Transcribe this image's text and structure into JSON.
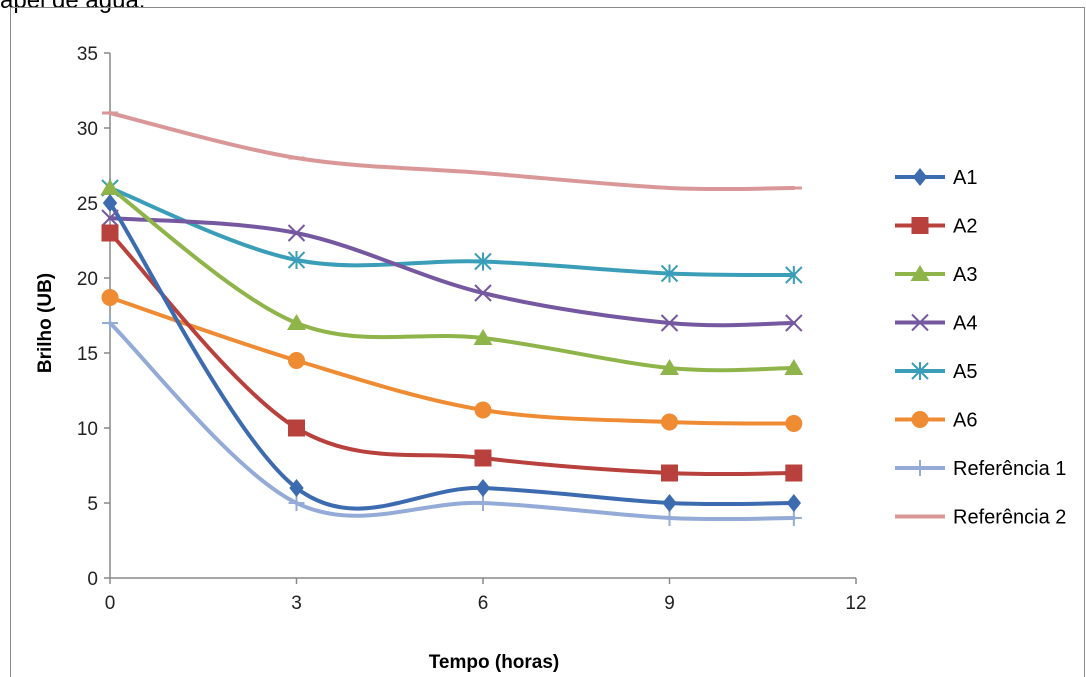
{
  "caption": "apel de água.",
  "chart_data": {
    "type": "line",
    "smooth": true,
    "title": "",
    "xlabel": "Tempo (horas)",
    "ylabel": "Brilho (UB)",
    "xlim": [
      0,
      12
    ],
    "ylim": [
      0,
      35
    ],
    "xticks": [
      0,
      3,
      6,
      9,
      12
    ],
    "yticks": [
      0,
      5,
      10,
      15,
      20,
      25,
      30,
      35
    ],
    "grid": false,
    "legend_position": "right",
    "x": [
      0,
      3,
      6,
      9,
      11
    ],
    "series": [
      {
        "name": "A1",
        "values": [
          25,
          6,
          6,
          5,
          5
        ],
        "color": "#3c6bb0",
        "marker": "diamond"
      },
      {
        "name": "A2",
        "values": [
          23,
          10,
          8,
          7,
          7
        ],
        "color": "#b8413d",
        "marker": "square"
      },
      {
        "name": "A3",
        "values": [
          26,
          17,
          16,
          14,
          14
        ],
        "color": "#8eb44a",
        "marker": "triangle"
      },
      {
        "name": "A4",
        "values": [
          24,
          23,
          19,
          17,
          17
        ],
        "color": "#7558a0",
        "marker": "x"
      },
      {
        "name": "A5",
        "values": [
          26,
          21.2,
          21.1,
          20.3,
          20.2
        ],
        "color": "#3a9eb8",
        "marker": "star"
      },
      {
        "name": "A6",
        "values": [
          18.7,
          14.5,
          11.2,
          10.4,
          10.3
        ],
        "color": "#ee8b33",
        "marker": "circle"
      },
      {
        "name": "Referência 1",
        "values": [
          17,
          5,
          5,
          4,
          4
        ],
        "color": "#93abd6",
        "marker": "plus"
      },
      {
        "name": "Referência 2",
        "values": [
          31,
          28,
          27,
          26,
          26
        ],
        "color": "#d99897",
        "marker": "dash"
      }
    ]
  }
}
